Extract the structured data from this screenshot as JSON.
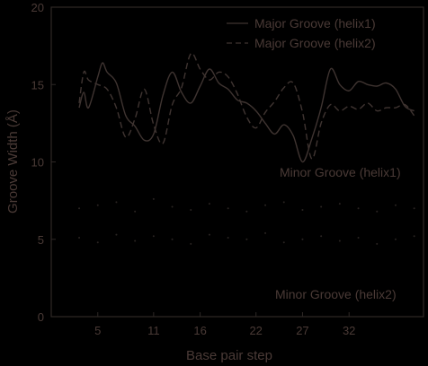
{
  "colors": {
    "background": "#000000",
    "text": "#4a3a36",
    "axis": "#2e2826",
    "major_series": "#3f3431",
    "minor_dots": "#2a2422"
  },
  "chart_data": {
    "type": "line",
    "xlabel": "Base pair step",
    "ylabel": "Groove Width (Å)",
    "xlim": [
      0,
      40
    ],
    "ylim": [
      0,
      20
    ],
    "x_ticks": [
      5,
      11,
      16,
      22,
      27,
      32
    ],
    "y_ticks": [
      0,
      5,
      10,
      15,
      20
    ],
    "grid": false,
    "legend_position": "top-right",
    "series": [
      {
        "name": "Major Groove (helix1)",
        "line": "solid",
        "x": [
          3,
          3.5,
          4,
          5,
          5.5,
          6,
          7,
          8,
          9,
          10,
          11,
          12,
          13,
          14,
          15,
          16,
          17,
          18,
          19,
          20,
          21,
          22,
          23,
          24,
          25,
          26,
          27,
          28,
          29,
          30,
          31,
          32,
          33,
          34,
          35,
          36,
          37,
          38,
          39
        ],
        "y": [
          13.5,
          14.5,
          13.5,
          15.5,
          16.4,
          15.8,
          15.1,
          13.0,
          12.3,
          11.4,
          11.8,
          14.3,
          15.8,
          14.5,
          13.8,
          14.9,
          16.0,
          15.1,
          14.7,
          14.0,
          13.8,
          13.3,
          12.5,
          11.8,
          12.4,
          11.7,
          10.0,
          11.5,
          13.5,
          16.0,
          15.0,
          14.6,
          15.2,
          15.0,
          14.9,
          15.1,
          14.7,
          13.6,
          13.3
        ]
      },
      {
        "name": "Major Groove (helix2)",
        "line": "dashed",
        "x": [
          3,
          3.5,
          4,
          5,
          6,
          7,
          8,
          9,
          10,
          11,
          12,
          13,
          14,
          15,
          16,
          17,
          18,
          19,
          20,
          21,
          22,
          23,
          24,
          25,
          26,
          27,
          28,
          29,
          30,
          31,
          32,
          33,
          34,
          35,
          36,
          37,
          38,
          39
        ],
        "y": [
          13.8,
          15.8,
          15.3,
          15.0,
          14.7,
          13.5,
          11.6,
          12.8,
          14.7,
          12.4,
          11.2,
          13.7,
          14.8,
          17.0,
          16.0,
          15.3,
          15.8,
          15.5,
          14.4,
          12.9,
          12.2,
          13.2,
          13.9,
          14.8,
          15.1,
          13.2,
          10.2,
          12.5,
          13.7,
          13.3,
          13.6,
          13.4,
          13.8,
          13.3,
          13.5,
          13.5,
          13.7,
          13.0
        ]
      },
      {
        "name": "",
        "line": "dotted",
        "x": [
          3,
          5,
          7,
          9,
          11,
          13,
          15,
          17,
          19,
          21,
          23,
          25,
          27,
          29,
          31,
          33,
          35,
          37,
          39
        ],
        "y": [
          7.0,
          7.2,
          7.4,
          6.8,
          7.6,
          7.1,
          6.9,
          7.3,
          7.0,
          6.8,
          7.2,
          7.4,
          6.9,
          7.1,
          7.3,
          7.0,
          6.8,
          7.2,
          7.0
        ]
      },
      {
        "name": "",
        "line": "dotted",
        "x": [
          3,
          5,
          7,
          9,
          11,
          13,
          15,
          17,
          19,
          21,
          23,
          25,
          27,
          29,
          31,
          33,
          35,
          37,
          39
        ],
        "y": [
          5.1,
          4.8,
          5.3,
          4.9,
          5.2,
          5.0,
          4.7,
          5.3,
          5.1,
          5.0,
          5.4,
          4.8,
          5.0,
          5.2,
          4.9,
          5.1,
          4.7,
          5.0,
          5.2
        ]
      }
    ],
    "annotations": [
      "Minor Groove (helix1)",
      "Minor Groove (helix2)"
    ]
  }
}
